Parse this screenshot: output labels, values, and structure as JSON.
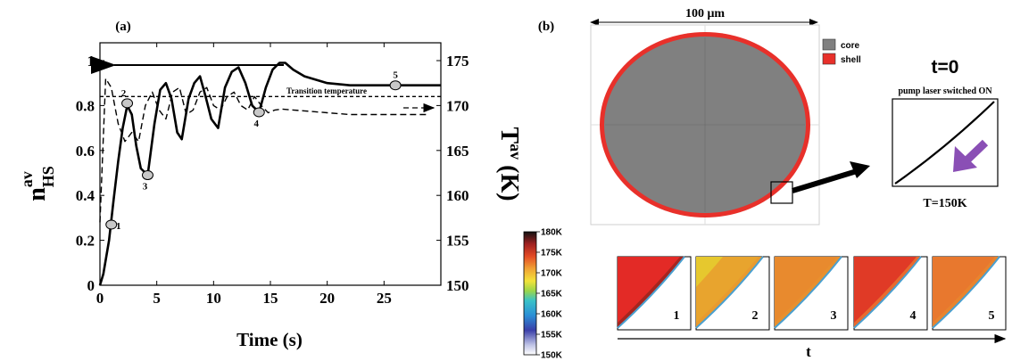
{
  "panel_a": {
    "label": "(a)",
    "xlabel": "Time (s)",
    "ylabel_left": {
      "main": "n",
      "sub": "HS",
      "sup": "av"
    },
    "ylabel_right": {
      "main": "T",
      "sup": "av",
      "unit": "(K)"
    },
    "x_ticks": [
      "0",
      "5",
      "10",
      "15",
      "20",
      "25"
    ],
    "y_left_ticks": [
      "0",
      "0.2",
      "0.4",
      "0.6",
      "0.8",
      "1"
    ],
    "y_right_ticks": [
      "150",
      "155",
      "160",
      "165",
      "170",
      "175"
    ],
    "annotation": "Transition temperature",
    "markers": [
      "1",
      "2",
      "3",
      "4",
      "5"
    ]
  },
  "panel_b": {
    "label": "(b)",
    "scale_label": "100 μm",
    "legend": [
      {
        "label": "core",
        "color": "#808080"
      },
      {
        "label": "shell",
        "color": "#e8302a"
      }
    ],
    "time_title": "t=0",
    "pump_note": "pump laser switched ON",
    "temperature": "T=150K",
    "colorbar_ticks": [
      "180K",
      "175K",
      "170K",
      "165K",
      "160K",
      "155K",
      "150K"
    ],
    "snapshot_labels": [
      "1",
      "2",
      "3",
      "4",
      "5"
    ],
    "time_axis_label": "t"
  },
  "chart_data": {
    "type": "line",
    "xlabel": "Time (s)",
    "xlim": [
      0,
      30
    ],
    "ylim_left": [
      0,
      1
    ],
    "ylim_right": [
      150,
      175
    ],
    "series": [
      {
        "axis": "left",
        "style": "solid",
        "x": [
          0,
          0.3,
          0.8,
          1.2,
          1.6,
          2.0,
          2.4,
          2.8,
          3.2,
          3.6,
          4.2,
          4.8,
          5.3,
          5.8,
          6.3,
          6.8,
          7.2,
          7.8,
          8.3,
          8.8,
          9.3,
          9.8,
          10.4,
          11.0,
          11.6,
          12.2,
          12.8,
          13.4,
          14.0,
          14.6,
          15.2,
          15.8,
          16.3,
          17.0,
          18.0,
          20.0,
          22.0,
          24.0,
          26.0,
          28.0,
          30.0
        ],
        "y": [
          0,
          0.05,
          0.2,
          0.38,
          0.55,
          0.7,
          0.8,
          0.76,
          0.62,
          0.52,
          0.49,
          0.72,
          0.87,
          0.9,
          0.83,
          0.68,
          0.65,
          0.83,
          0.9,
          0.93,
          0.84,
          0.74,
          0.7,
          0.88,
          0.95,
          0.97,
          0.9,
          0.8,
          0.77,
          0.88,
          0.96,
          0.99,
          0.99,
          0.96,
          0.93,
          0.9,
          0.89,
          0.89,
          0.89,
          0.89,
          0.89
        ]
      },
      {
        "axis": "right",
        "style": "dashed",
        "x": [
          0,
          0.5,
          1.0,
          1.6,
          2.2,
          2.8,
          3.4,
          4.0,
          4.6,
          5.2,
          5.8,
          6.4,
          7.0,
          7.6,
          8.2,
          8.8,
          9.4,
          10.0,
          10.6,
          11.2,
          11.8,
          12.4,
          13.0,
          13.6,
          14.2,
          14.8,
          15.4,
          16.0,
          17.0,
          18.0,
          20.0,
          22.0,
          24.0,
          26.0,
          28.0,
          29.0
        ],
        "y": [
          157,
          173,
          172,
          168,
          166,
          167,
          166,
          170,
          171.5,
          169.5,
          168.5,
          171.5,
          172,
          169,
          169.5,
          171.5,
          172,
          170,
          169.5,
          171,
          171.5,
          170,
          169.5,
          171,
          170,
          169.2,
          169.5,
          169.6,
          169.5,
          169.4,
          169.2,
          169.0,
          169.0,
          169.0,
          169.0,
          169.0
        ]
      },
      {
        "axis": "right",
        "style": "dashed",
        "name": "Transition temperature",
        "x": [
          0,
          30
        ],
        "y": [
          171,
          171
        ]
      }
    ],
    "markers": [
      {
        "label": "1",
        "x": 1.0,
        "y": 0.27
      },
      {
        "label": "2",
        "x": 2.4,
        "y": 0.81
      },
      {
        "label": "3",
        "x": 4.2,
        "y": 0.49
      },
      {
        "label": "4",
        "x": 14.0,
        "y": 0.77
      },
      {
        "label": "5",
        "x": 26.0,
        "y": 0.89
      }
    ],
    "colorbar": {
      "min": 150,
      "max": 180,
      "unit": "K"
    }
  }
}
